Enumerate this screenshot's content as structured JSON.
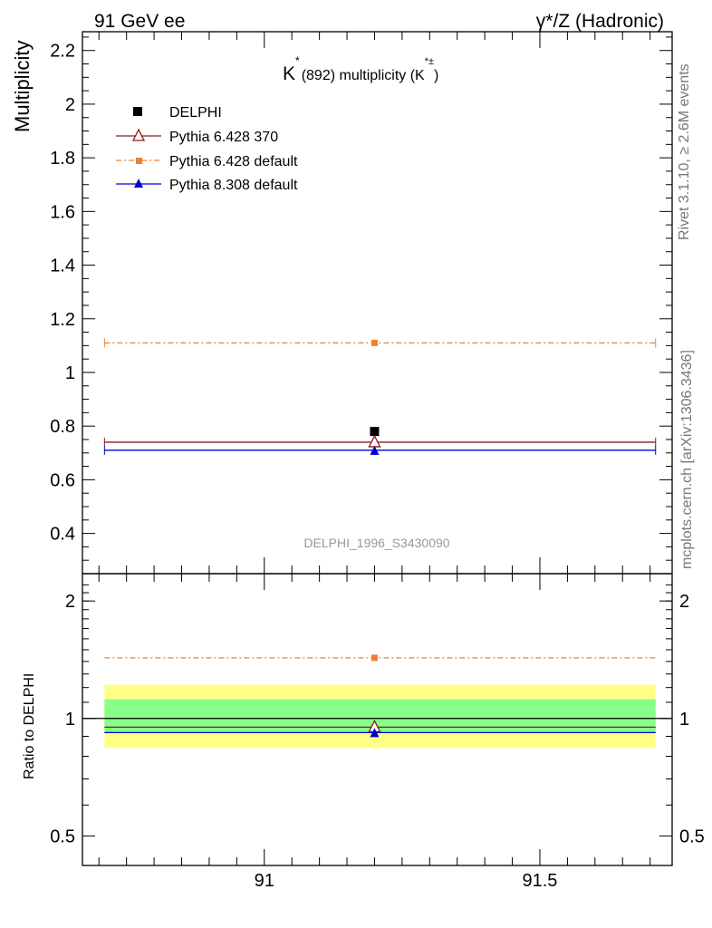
{
  "header": {
    "left": "91 GeV ee",
    "right": "γ*/Z (Hadronic)"
  },
  "side": {
    "rivet": "Rivet 3.1.10, ≥ 2.6M events",
    "mcplots": "mcplots.cern.ch [arXiv:1306.3436]"
  },
  "chart_data": [
    {
      "type": "scatter",
      "title": {
        "main": "K",
        "sup": "*",
        "rest": "(892) multiplicity (K",
        "sup2": "*±",
        "end": ")"
      },
      "ylabel": "Multiplicity",
      "watermark": "DELPHI_1996_S3430090",
      "xlim": [
        90.67,
        91.74
      ],
      "ylim": [
        0.25,
        2.27
      ],
      "yticks": [
        0.4,
        0.6,
        0.8,
        1,
        1.2,
        1.4,
        1.6,
        1.8,
        2,
        2.2
      ],
      "ytick_labels": [
        "0.4",
        "0.6",
        "0.8",
        "1",
        "1.2",
        "1.4",
        "1.6",
        "1.8",
        "2",
        "2.2"
      ],
      "x_range_line": [
        90.71,
        91.71
      ],
      "series": [
        {
          "name": "DELPHI",
          "marker": "square",
          "color": "#000000",
          "x": 91.2,
          "y": 0.78,
          "line": false
        },
        {
          "name": "Pythia 6.428 370",
          "marker": "open-triangle",
          "color": "#8b1a1a",
          "x": 91.2,
          "y": 0.74,
          "line": true,
          "dash": "solid"
        },
        {
          "name": "Pythia 6.428 default",
          "marker": "small-square",
          "color": "#f08030",
          "x": 91.2,
          "y": 1.11,
          "line": true,
          "dash": "dashdot"
        },
        {
          "name": "Pythia 8.308 default",
          "marker": "triangle",
          "color": "#0000cc",
          "x": 91.2,
          "y": 0.71,
          "line": true,
          "dash": "solid"
        }
      ]
    },
    {
      "type": "scatter",
      "ylabel": "Ratio to DELPHI",
      "xlim": [
        90.67,
        91.74
      ],
      "ylim": [
        0.42,
        2.35
      ],
      "log_y": true,
      "yticks": [
        0.5,
        1,
        2
      ],
      "ytick_labels": [
        "0.5",
        "1",
        "2"
      ],
      "xticks": [
        91,
        91.5
      ],
      "xtick_labels": [
        "91",
        "91.5"
      ],
      "bands": [
        {
          "color": "#ffff88",
          "lower": 0.84,
          "upper": 1.22
        },
        {
          "color": "#88ff88",
          "lower": 0.92,
          "upper": 1.12
        }
      ],
      "series": [
        {
          "name": "Pythia 6.428 370",
          "color": "#8b1a1a",
          "y": 0.95
        },
        {
          "name": "Pythia 6.428 default",
          "color": "#f08030",
          "y": 1.43
        },
        {
          "name": "Pythia 8.308 default",
          "color": "#0000cc",
          "y": 0.92
        }
      ]
    }
  ]
}
